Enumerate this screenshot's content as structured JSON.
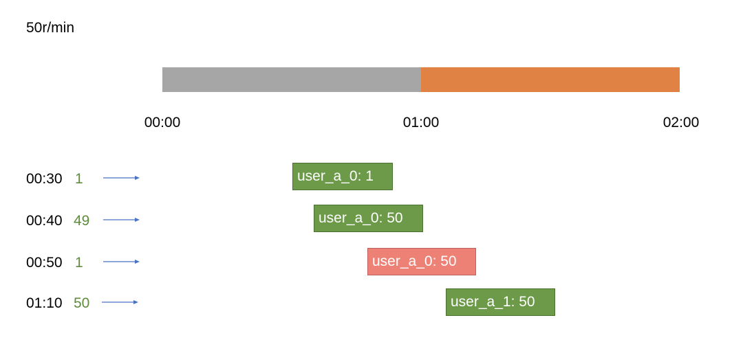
{
  "header": {
    "title": "50r/min"
  },
  "timeline": {
    "labels": [
      "00:00",
      "01:00",
      "02:00"
    ]
  },
  "rows": [
    {
      "time": "00:30",
      "count": 1,
      "box": "user_a_0: 1"
    },
    {
      "time": "00:40",
      "count": 49,
      "box": "user_a_0: 50"
    },
    {
      "time": "00:50",
      "count": 1,
      "box": "user_a_0: 50"
    },
    {
      "time": "01:10",
      "count": 50,
      "box": "user_a_1: 50"
    }
  ]
}
